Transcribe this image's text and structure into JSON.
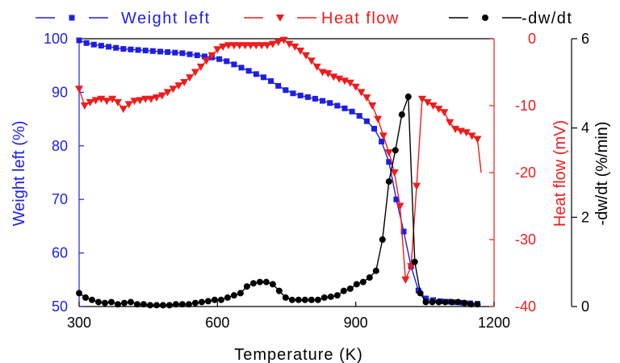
{
  "chart_data": {
    "type": "line",
    "xlabel": "Temperature (K)",
    "xlim": [
      300,
      1200
    ],
    "x_ticks": [
      "300",
      "600",
      "900",
      "1200"
    ],
    "axes": {
      "left": {
        "label": "Weight left (%)",
        "lim": [
          50,
          100
        ],
        "ticks": [
          "50",
          "60",
          "70",
          "80",
          "90",
          "100"
        ],
        "color": "#1f1fe0"
      },
      "right1": {
        "label": "Heat flow (mV)",
        "lim": [
          -40,
          0
        ],
        "ticks": [
          "-40",
          "-30",
          "-20",
          "-10",
          "0"
        ],
        "color": "#ee1c1c"
      },
      "right2": {
        "label": "-dw/dt (%/min)",
        "lim": [
          0,
          6
        ],
        "ticks": [
          "0",
          "2",
          "4",
          "6"
        ],
        "color": "#000000"
      }
    },
    "legend_position": "top",
    "series": [
      {
        "name": "Weight left",
        "axis": "left",
        "marker": "square",
        "color": "#1f1fe0",
        "x": [
          300,
          316,
          332,
          348,
          364,
          380,
          396,
          412,
          428,
          444,
          460,
          476,
          492,
          508,
          524,
          540,
          556,
          572,
          588,
          604,
          620,
          636,
          652,
          668,
          684,
          700,
          716,
          732,
          748,
          764,
          780,
          796,
          812,
          828,
          844,
          860,
          876,
          892,
          908,
          924,
          940,
          956,
          972,
          988,
          1004,
          1020,
          1036,
          1052,
          1068,
          1084,
          1100,
          1116,
          1132,
          1148,
          1164
        ],
        "y": [
          99.7,
          99.2,
          98.9,
          98.7,
          98.5,
          98.3,
          98.1,
          98.0,
          97.9,
          97.8,
          97.7,
          97.6,
          97.5,
          97.4,
          97.3,
          97.1,
          96.9,
          96.7,
          96.5,
          96.2,
          95.8,
          95.2,
          94.6,
          94.0,
          93.4,
          92.8,
          92.1,
          91.2,
          90.4,
          89.8,
          89.4,
          89.1,
          88.8,
          88.4,
          88.0,
          87.5,
          87.0,
          86.4,
          85.6,
          84.6,
          83.2,
          80.8,
          77.0,
          70.0,
          64.0,
          57.5,
          53.0,
          51.5,
          51.2,
          51.0,
          50.9,
          50.8,
          50.7,
          50.6,
          50.5
        ]
      },
      {
        "name": "Heat flow",
        "axis": "right1",
        "marker": "triangle-down",
        "color": "#ee1c1c",
        "x": [
          300,
          312,
          324,
          336,
          348,
          360,
          372,
          384,
          396,
          408,
          420,
          432,
          444,
          456,
          468,
          480,
          492,
          504,
          516,
          528,
          540,
          552,
          564,
          576,
          588,
          600,
          612,
          624,
          636,
          648,
          660,
          672,
          684,
          696,
          708,
          720,
          732,
          744,
          756,
          768,
          780,
          792,
          804,
          816,
          828,
          840,
          852,
          864,
          876,
          888,
          900,
          912,
          924,
          936,
          948,
          960,
          972,
          984,
          996,
          1008,
          1020,
          1032,
          1044,
          1056,
          1068,
          1080,
          1092,
          1104,
          1116,
          1128,
          1140,
          1152,
          1164,
          1172
        ],
        "y": [
          -7.5,
          -10.0,
          -9.5,
          -9.2,
          -9.0,
          -9.3,
          -9.0,
          -9.5,
          -10.5,
          -9.8,
          -9.3,
          -9.2,
          -9.0,
          -9.0,
          -8.8,
          -8.5,
          -8.0,
          -7.5,
          -7.0,
          -6.5,
          -5.8,
          -5.0,
          -4.2,
          -3.3,
          -2.5,
          -1.6,
          -1.2,
          -1.0,
          -1.0,
          -1.0,
          -1.0,
          -1.0,
          -1.0,
          -1.0,
          -1.0,
          -0.8,
          -0.5,
          -0.2,
          -0.8,
          -1.2,
          -1.8,
          -2.5,
          -3.3,
          -4.2,
          -5.0,
          -5.2,
          -5.7,
          -6.0,
          -6.3,
          -6.6,
          -7.2,
          -8.0,
          -8.8,
          -10.0,
          -12.0,
          -14.5,
          -17.0,
          -20.0,
          -25.0,
          -36.0,
          -34.0,
          -22.0,
          -9.0,
          -9.5,
          -10.0,
          -10.5,
          -11.0,
          -12.5,
          -13.5,
          -13.8,
          -14.0,
          -14.5,
          -15.0,
          -20.0
        ]
      },
      {
        "name": "-dw/dt",
        "axis": "right2",
        "marker": "circle",
        "color": "#000000",
        "x": [
          300,
          314,
          328,
          342,
          356,
          370,
          384,
          398,
          412,
          426,
          440,
          454,
          468,
          482,
          496,
          510,
          524,
          538,
          552,
          566,
          580,
          594,
          608,
          622,
          636,
          650,
          664,
          678,
          692,
          706,
          720,
          734,
          748,
          762,
          776,
          790,
          804,
          818,
          832,
          846,
          860,
          874,
          888,
          902,
          916,
          930,
          944,
          958,
          972,
          986,
          1000,
          1014,
          1028,
          1040,
          1052,
          1066,
          1080,
          1094,
          1108,
          1122,
          1136,
          1150,
          1164
        ],
        "y": [
          0.3,
          0.2,
          0.15,
          0.1,
          0.08,
          0.1,
          0.05,
          0.08,
          0.1,
          0.05,
          0.05,
          0.03,
          0.03,
          0.03,
          0.03,
          0.05,
          0.05,
          0.05,
          0.08,
          0.1,
          0.12,
          0.15,
          0.15,
          0.2,
          0.25,
          0.3,
          0.45,
          0.52,
          0.55,
          0.55,
          0.5,
          0.35,
          0.2,
          0.15,
          0.15,
          0.15,
          0.15,
          0.15,
          0.2,
          0.22,
          0.25,
          0.35,
          0.4,
          0.5,
          0.55,
          0.65,
          0.8,
          1.5,
          2.8,
          3.5,
          4.3,
          4.7,
          1.0,
          0.3,
          0.1,
          0.1,
          0.1,
          0.1,
          0.1,
          0.1,
          0.08,
          0.05,
          0.05
        ]
      }
    ]
  }
}
